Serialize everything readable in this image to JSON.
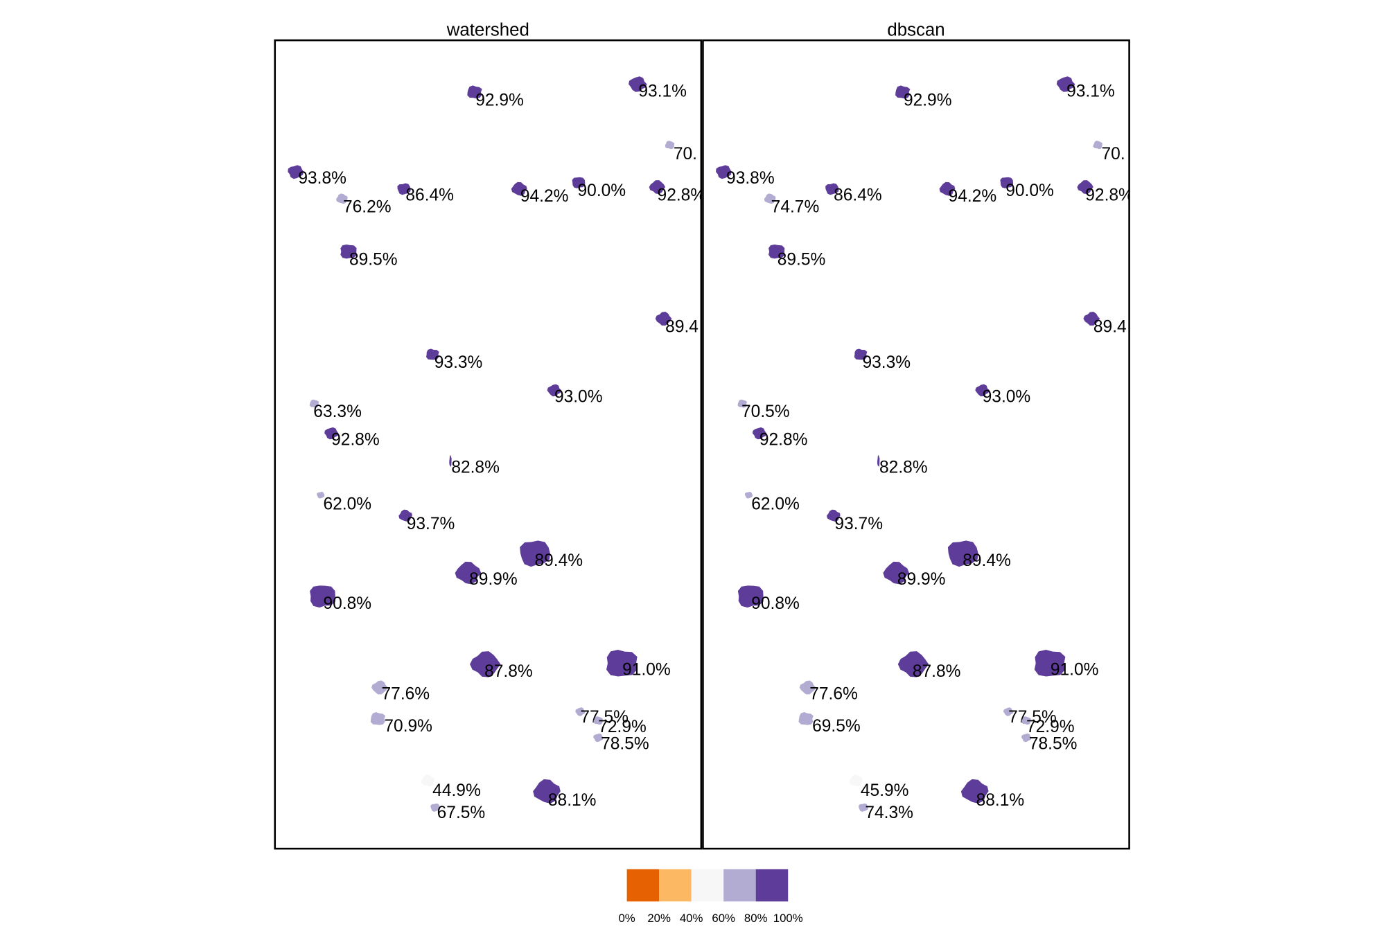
{
  "chart_data": {
    "type": "choropleth-map",
    "panels": [
      {
        "title": "watershed",
        "regions": [
          {
            "label": "92.9%",
            "value": 92.9
          },
          {
            "label": "93.1%",
            "value": 93.1
          },
          {
            "label": "70.",
            "value": 70
          },
          {
            "label": "93.8%",
            "value": 93.8
          },
          {
            "label": "76.2%",
            "value": 76.2
          },
          {
            "label": "86.4%",
            "value": 86.4
          },
          {
            "label": "94.2%",
            "value": 94.2
          },
          {
            "label": "90.0%",
            "value": 90.0
          },
          {
            "label": "92.8%",
            "value": 92.8
          },
          {
            "label": "89.5%",
            "value": 89.5
          },
          {
            "label": "89.4",
            "value": 89.4
          },
          {
            "label": "93.3%",
            "value": 93.3
          },
          {
            "label": "93.0%",
            "value": 93.0
          },
          {
            "label": "63.3%",
            "value": 63.3
          },
          {
            "label": "92.8%",
            "value": 92.8
          },
          {
            "label": "82.8%",
            "value": 82.8
          },
          {
            "label": "62.0%",
            "value": 62.0
          },
          {
            "label": "93.7%",
            "value": 93.7
          },
          {
            "label": "89.4%",
            "value": 89.4
          },
          {
            "label": "89.9%",
            "value": 89.9
          },
          {
            "label": "90.8%",
            "value": 90.8
          },
          {
            "label": "87.8%",
            "value": 87.8
          },
          {
            "label": "91.0%",
            "value": 91.0
          },
          {
            "label": "77.6%",
            "value": 77.6
          },
          {
            "label": "70.9%",
            "value": 70.9
          },
          {
            "label": "77.5%",
            "value": 77.5
          },
          {
            "label": "72.9%",
            "value": 72.9
          },
          {
            "label": "78.5%",
            "value": 78.5
          },
          {
            "label": "44.9%",
            "value": 44.9
          },
          {
            "label": "67.5%",
            "value": 67.5
          },
          {
            "label": "88.1%",
            "value": 88.1
          }
        ]
      },
      {
        "title": "dbscan",
        "regions": [
          {
            "label": "92.9%",
            "value": 92.9
          },
          {
            "label": "93.1%",
            "value": 93.1
          },
          {
            "label": "70.",
            "value": 70
          },
          {
            "label": "93.8%",
            "value": 93.8
          },
          {
            "label": "74.7%",
            "value": 74.7
          },
          {
            "label": "86.4%",
            "value": 86.4
          },
          {
            "label": "94.2%",
            "value": 94.2
          },
          {
            "label": "90.0%",
            "value": 90.0
          },
          {
            "label": "92.8%",
            "value": 92.8
          },
          {
            "label": "89.5%",
            "value": 89.5
          },
          {
            "label": "89.4",
            "value": 89.4
          },
          {
            "label": "93.3%",
            "value": 93.3
          },
          {
            "label": "93.0%",
            "value": 93.0
          },
          {
            "label": "70.5%",
            "value": 70.5
          },
          {
            "label": "92.8%",
            "value": 92.8
          },
          {
            "label": "82.8%",
            "value": 82.8
          },
          {
            "label": "62.0%",
            "value": 62.0
          },
          {
            "label": "93.7%",
            "value": 93.7
          },
          {
            "label": "89.4%",
            "value": 89.4
          },
          {
            "label": "89.9%",
            "value": 89.9
          },
          {
            "label": "90.8%",
            "value": 90.8
          },
          {
            "label": "87.8%",
            "value": 87.8
          },
          {
            "label": "91.0%",
            "value": 91.0
          },
          {
            "label": "77.6%",
            "value": 77.6
          },
          {
            "label": "69.5%",
            "value": 69.5
          },
          {
            "label": "77.5%",
            "value": 77.5
          },
          {
            "label": "72.9%",
            "value": 72.9
          },
          {
            "label": "78.5%",
            "value": 78.5
          },
          {
            "label": "45.9%",
            "value": 45.9
          },
          {
            "label": "74.3%",
            "value": 74.3
          },
          {
            "label": "88.1%",
            "value": 88.1
          }
        ]
      }
    ],
    "legend": {
      "placement": "bottom",
      "bins": [
        {
          "from": 0,
          "to": 20,
          "color": "#e66101"
        },
        {
          "from": 20,
          "to": 40,
          "color": "#fdb863"
        },
        {
          "from": 40,
          "to": 60,
          "color": "#f7f7f7"
        },
        {
          "from": 60,
          "to": 80,
          "color": "#b2abd2"
        },
        {
          "from": 80,
          "to": 100,
          "color": "#5e3c99"
        }
      ],
      "tick_labels": [
        "0%",
        "20%",
        "40%",
        "60%",
        "80%",
        "100%"
      ]
    }
  }
}
